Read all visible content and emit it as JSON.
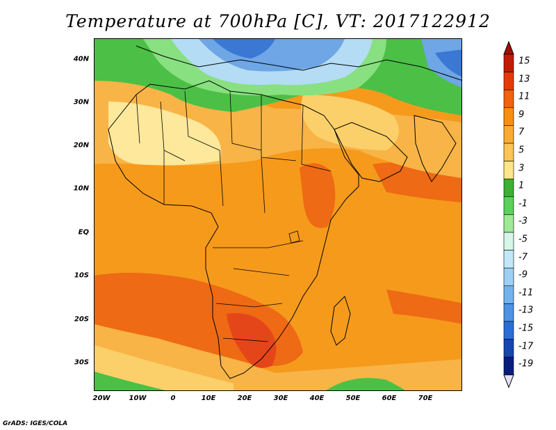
{
  "title": "Temperature at 700hPa [C], VT: 2017122912",
  "credit": "GrADS: IGES/COLA",
  "y_axis": [
    "40N",
    "30N",
    "20N",
    "10N",
    "EQ",
    "10S",
    "20S",
    "30S"
  ],
  "x_axis": [
    "20W",
    "10W",
    "0",
    "10E",
    "20E",
    "30E",
    "40E",
    "50E",
    "60E",
    "70E"
  ],
  "colorbar": {
    "labels": [
      "15",
      "13",
      "11",
      "9",
      "7",
      "5",
      "3",
      "1",
      "-1",
      "-3",
      "-5",
      "-7",
      "-9",
      "-11",
      "-13",
      "-15",
      "-17",
      "-19"
    ],
    "colors": [
      "#c01b04",
      "#e43a08",
      "#f0620c",
      "#f58f12",
      "#f8ac34",
      "#fac456",
      "#fde58e",
      "#3cb034",
      "#5bd05c",
      "#9ee996",
      "#d6f6e8",
      "#c2e8f8",
      "#9ed0f4",
      "#74b2ee",
      "#4e92e4",
      "#2a6ed2",
      "#1646b0",
      "#081c7c"
    ],
    "top_arrow_color": "#a40e02",
    "bottom_arrow_color": "#e6e0fa"
  },
  "field_colors": {
    "ocean_base": "#f69a1c",
    "hot": "#ee6a14",
    "very_hot": "#e4461a",
    "warm": "#f8b446",
    "mild": "#fbd06a",
    "pale": "#fde89c",
    "green": "#4cbf46",
    "light_green": "#88e080",
    "pale_blue": "#b4dcf4",
    "blue": "#6ea6e6",
    "dark_blue": "#3a78d4"
  }
}
